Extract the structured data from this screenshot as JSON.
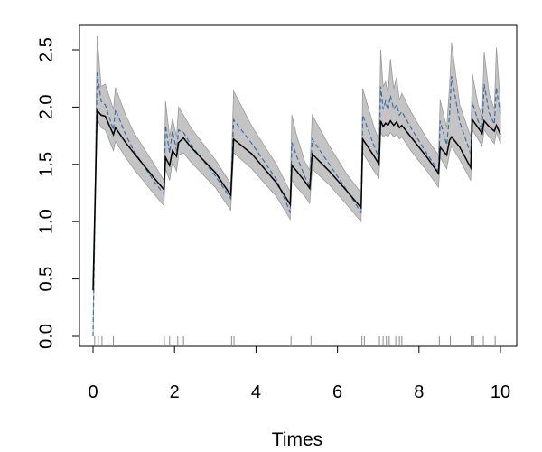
{
  "chart_data": {
    "type": "line",
    "title": "",
    "xlabel": "Times",
    "ylabel": "",
    "xlim": [
      0,
      10
    ],
    "ylim": [
      0,
      2.6
    ],
    "xticks": [
      0,
      2,
      4,
      6,
      8,
      10
    ],
    "yticks": [
      0.0,
      0.5,
      1.0,
      1.5,
      2.0,
      2.5
    ],
    "ytick_labels": [
      "0.0",
      "0.5",
      "1.0",
      "1.5",
      "2.0",
      "2.5"
    ],
    "grid": false,
    "legend": "none",
    "colors": {
      "band": "#c4c4c4",
      "band_edge": "#9a9a9a",
      "estimate": "#000000",
      "truth": "#3c6fa8"
    },
    "event_times": [
      0.04,
      0.13,
      0.22,
      0.5,
      1.75,
      1.88,
      2.08,
      2.22,
      3.4,
      3.46,
      4.86,
      5.35,
      6.6,
      6.66,
      7.03,
      7.12,
      7.2,
      7.27,
      7.43,
      7.52,
      7.58,
      8.5,
      8.77,
      9.28,
      9.31,
      9.34,
      9.58,
      9.87
    ],
    "series": [
      {
        "role": "estimate",
        "x": [
          0,
          0.1,
          0.2,
          0.3,
          0.5,
          0.55,
          0.8,
          1.0,
          1.5,
          1.74,
          1.78,
          1.88,
          1.95,
          2.05,
          2.1,
          2.22,
          2.4,
          3.0,
          3.38,
          3.45,
          3.9,
          4.5,
          4.84,
          4.88,
          5.0,
          5.2,
          5.32,
          5.38,
          5.8,
          6.2,
          6.58,
          6.62,
          6.9,
          7.02,
          7.06,
          7.12,
          7.18,
          7.24,
          7.3,
          7.38,
          7.45,
          7.52,
          7.58,
          7.8,
          8.2,
          8.48,
          8.52,
          8.68,
          8.75,
          8.8,
          9.0,
          9.27,
          9.31,
          9.45,
          9.55,
          9.6,
          9.72,
          9.85,
          9.9,
          10.0
        ],
        "y": [
          0.4,
          1.97,
          1.93,
          1.92,
          1.76,
          1.82,
          1.69,
          1.6,
          1.38,
          1.28,
          1.56,
          1.49,
          1.62,
          1.57,
          1.69,
          1.73,
          1.65,
          1.43,
          1.23,
          1.72,
          1.59,
          1.34,
          1.15,
          1.49,
          1.44,
          1.35,
          1.29,
          1.59,
          1.44,
          1.28,
          1.12,
          1.72,
          1.57,
          1.5,
          1.88,
          1.83,
          1.86,
          1.84,
          1.88,
          1.84,
          1.87,
          1.82,
          1.84,
          1.74,
          1.56,
          1.42,
          1.65,
          1.58,
          1.71,
          1.74,
          1.65,
          1.47,
          1.89,
          1.82,
          1.77,
          1.88,
          1.83,
          1.79,
          1.84,
          1.76
        ]
      },
      {
        "role": "truth",
        "x": [
          0,
          0.1,
          0.2,
          0.3,
          0.5,
          0.55,
          0.8,
          1.0,
          1.5,
          1.74,
          1.78,
          1.88,
          1.95,
          2.05,
          2.1,
          2.22,
          2.4,
          3.0,
          3.38,
          3.45,
          3.9,
          4.5,
          4.84,
          4.88,
          5.0,
          5.2,
          5.32,
          5.38,
          5.8,
          6.2,
          6.58,
          6.62,
          6.9,
          7.02,
          7.06,
          7.12,
          7.18,
          7.24,
          7.3,
          7.38,
          7.45,
          7.52,
          7.58,
          7.8,
          8.2,
          8.48,
          8.52,
          8.68,
          8.75,
          8.8,
          9.0,
          9.27,
          9.31,
          9.45,
          9.55,
          9.6,
          9.72,
          9.85,
          9.9,
          10.0
        ],
        "y": [
          0.0,
          2.3,
          2.05,
          2.02,
          1.8,
          1.98,
          1.76,
          1.62,
          1.35,
          1.24,
          1.84,
          1.6,
          1.79,
          1.62,
          1.8,
          1.78,
          1.67,
          1.4,
          1.2,
          1.89,
          1.68,
          1.37,
          1.08,
          1.69,
          1.57,
          1.39,
          1.31,
          1.72,
          1.5,
          1.29,
          1.08,
          1.93,
          1.66,
          1.55,
          2.18,
          1.98,
          2.05,
          1.97,
          2.1,
          1.98,
          2.02,
          1.93,
          1.96,
          1.82,
          1.59,
          1.44,
          1.88,
          1.67,
          1.93,
          2.27,
          1.87,
          1.59,
          2.04,
          1.88,
          1.8,
          2.2,
          1.95,
          1.85,
          2.17,
          1.93
        ]
      },
      {
        "role": "band-upper",
        "x": [
          0,
          0.1,
          0.2,
          0.3,
          0.5,
          0.55,
          0.8,
          1.0,
          1.5,
          1.74,
          1.78,
          1.88,
          1.95,
          2.05,
          2.1,
          2.22,
          2.4,
          3.0,
          3.38,
          3.45,
          3.9,
          4.5,
          4.84,
          4.88,
          5.0,
          5.2,
          5.32,
          5.38,
          5.8,
          6.2,
          6.58,
          6.62,
          6.9,
          7.02,
          7.06,
          7.12,
          7.18,
          7.24,
          7.3,
          7.38,
          7.45,
          7.52,
          7.58,
          7.8,
          8.2,
          8.48,
          8.52,
          8.68,
          8.75,
          8.8,
          9.0,
          9.27,
          9.31,
          9.45,
          9.55,
          9.6,
          9.72,
          9.85,
          9.9,
          10.0
        ],
        "y": [
          0.0,
          2.62,
          2.18,
          2.2,
          1.98,
          2.17,
          1.93,
          1.78,
          1.5,
          1.36,
          2.05,
          1.74,
          1.9,
          1.74,
          2.0,
          1.93,
          1.82,
          1.54,
          1.33,
          2.14,
          1.83,
          1.5,
          1.26,
          1.93,
          1.75,
          1.52,
          1.45,
          1.93,
          1.66,
          1.43,
          1.25,
          2.16,
          1.82,
          1.71,
          2.5,
          2.18,
          2.22,
          2.12,
          2.42,
          2.16,
          2.26,
          2.06,
          2.12,
          1.96,
          1.72,
          1.58,
          2.06,
          1.82,
          2.18,
          2.56,
          2.02,
          1.74,
          2.29,
          2.02,
          1.92,
          2.48,
          2.12,
          1.98,
          2.52,
          2.02
        ]
      },
      {
        "role": "band-lower",
        "x": [
          0,
          0.1,
          0.2,
          0.3,
          0.5,
          0.55,
          0.8,
          1.0,
          1.5,
          1.74,
          1.78,
          1.88,
          1.95,
          2.05,
          2.1,
          2.22,
          2.4,
          3.0,
          3.38,
          3.45,
          3.9,
          4.5,
          4.84,
          4.88,
          5.0,
          5.2,
          5.32,
          5.38,
          5.8,
          6.2,
          6.58,
          6.62,
          6.9,
          7.02,
          7.06,
          7.12,
          7.18,
          7.24,
          7.3,
          7.38,
          7.45,
          7.52,
          7.58,
          7.8,
          8.2,
          8.48,
          8.52,
          8.68,
          8.75,
          8.8,
          9.0,
          9.27,
          9.31,
          9.45,
          9.55,
          9.6,
          9.72,
          9.85,
          9.9,
          10.0
        ],
        "y": [
          0.0,
          1.9,
          1.82,
          1.8,
          1.62,
          1.7,
          1.56,
          1.46,
          1.24,
          1.14,
          1.46,
          1.36,
          1.52,
          1.44,
          1.58,
          1.6,
          1.52,
          1.3,
          1.1,
          1.6,
          1.46,
          1.22,
          1.02,
          1.36,
          1.3,
          1.22,
          1.16,
          1.46,
          1.32,
          1.16,
          1.0,
          1.6,
          1.44,
          1.38,
          1.78,
          1.74,
          1.76,
          1.74,
          1.78,
          1.74,
          1.76,
          1.72,
          1.74,
          1.62,
          1.44,
          1.3,
          1.56,
          1.46,
          1.6,
          1.66,
          1.54,
          1.36,
          1.8,
          1.72,
          1.66,
          1.8,
          1.74,
          1.68,
          1.78,
          1.68
        ]
      }
    ]
  }
}
